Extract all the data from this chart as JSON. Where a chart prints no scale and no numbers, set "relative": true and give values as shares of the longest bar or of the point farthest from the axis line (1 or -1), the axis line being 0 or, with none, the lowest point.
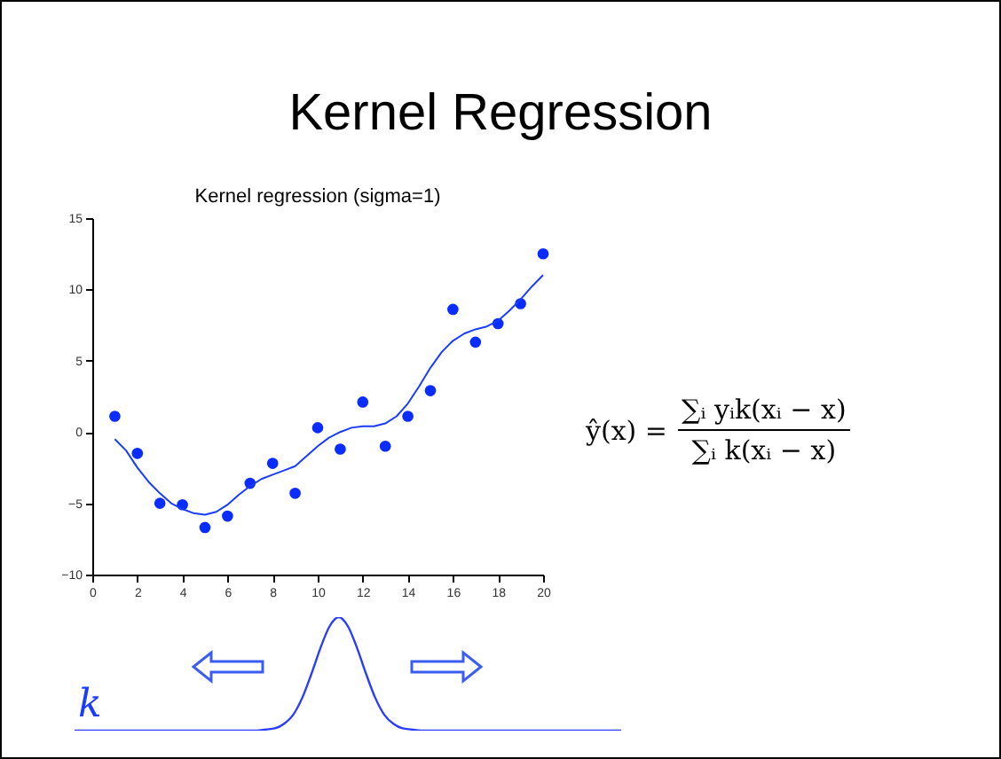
{
  "chart_data": [
    {
      "type": "scatter",
      "title": "Kernel Regression",
      "subtitle": "Kernel regression (sigma=1)",
      "x": [
        1,
        2,
        3,
        4,
        5,
        6,
        7,
        8,
        9,
        10,
        11,
        12,
        13,
        14,
        15,
        16,
        17,
        18,
        19,
        20
      ],
      "series": [
        {
          "type": "scatter",
          "color": "#0b2cff",
          "marker": "circle",
          "values": [
            1.1,
            -1.5,
            -5,
            -5.1,
            -6.7,
            -5.9,
            -3.6,
            -2.2,
            -4.3,
            0.3,
            -1.2,
            2.1,
            -1.0,
            1.1,
            2.9,
            8.6,
            6.3,
            7.6,
            9.0,
            12.5
          ]
        },
        {
          "type": "line",
          "color": "#1a3cff",
          "line_style": "solid",
          "x": [
            1,
            1.5,
            2,
            2.5,
            3,
            3.5,
            4,
            4.5,
            5,
            5.5,
            6,
            6.5,
            7,
            7.5,
            8,
            8.5,
            9,
            9.5,
            10,
            10.5,
            11,
            11.5,
            12,
            12.5,
            13,
            13.5,
            14,
            14.5,
            15,
            15.5,
            16,
            16.5,
            17,
            17.5,
            18,
            18.5,
            19,
            19.5,
            20
          ],
          "values": [
            -0.5,
            -1.3,
            -2.5,
            -3.5,
            -4.3,
            -5.0,
            -5.4,
            -5.7,
            -5.8,
            -5.6,
            -5.1,
            -4.4,
            -3.8,
            -3.3,
            -3.0,
            -2.7,
            -2.4,
            -1.7,
            -1.0,
            -0.4,
            0.0,
            0.3,
            0.4,
            0.4,
            0.6,
            1.1,
            2.0,
            3.2,
            4.5,
            5.6,
            6.4,
            6.9,
            7.2,
            7.4,
            7.8,
            8.5,
            9.3,
            10.2,
            11.0
          ]
        }
      ],
      "xlim": [
        0,
        20
      ],
      "xticks": [
        0,
        2,
        4,
        6,
        8,
        10,
        12,
        14,
        16,
        18,
        20
      ],
      "ylim": [
        -10,
        15
      ],
      "yticks": [
        -10,
        -5,
        0,
        5,
        10,
        15
      ],
      "grid": false,
      "annotations": [
        "ŷ(x) =",
        "∑ᵢ yᵢk(xᵢ − x)",
        "∑ᵢ k(xᵢ − x)"
      ]
    },
    {
      "type": "line",
      "relative": true,
      "color": "#2a3cff",
      "categories": [
        null,
        null,
        null,
        null,
        null,
        null,
        null,
        null,
        null,
        null,
        null,
        null,
        null,
        null,
        null,
        null,
        null,
        null,
        null,
        null,
        null,
        null,
        null,
        null,
        null,
        null,
        null,
        null,
        null,
        null,
        null,
        null,
        null,
        null,
        null,
        null,
        null,
        null,
        null,
        null,
        null,
        null,
        null,
        null,
        null,
        null,
        null,
        null,
        null,
        null,
        null,
        null,
        null,
        null,
        null,
        null,
        null,
        null,
        null,
        null,
        null
      ],
      "values": [
        0,
        0,
        0,
        0,
        0,
        0,
        0,
        0,
        0,
        0,
        0,
        0,
        0,
        0,
        0,
        0,
        0,
        0,
        0,
        0,
        0,
        0.01,
        0.02,
        0.06,
        0.14,
        0.29,
        0.5,
        0.73,
        0.92,
        1,
        0.92,
        0.73,
        0.5,
        0.29,
        0.14,
        0.06,
        0.02,
        0.01,
        0,
        0,
        0,
        0,
        0,
        0,
        0,
        0,
        0,
        0,
        0,
        0,
        0,
        0,
        0,
        0,
        0,
        0,
        0,
        0,
        0,
        0,
        0
      ],
      "annotations": [
        "k"
      ]
    }
  ]
}
